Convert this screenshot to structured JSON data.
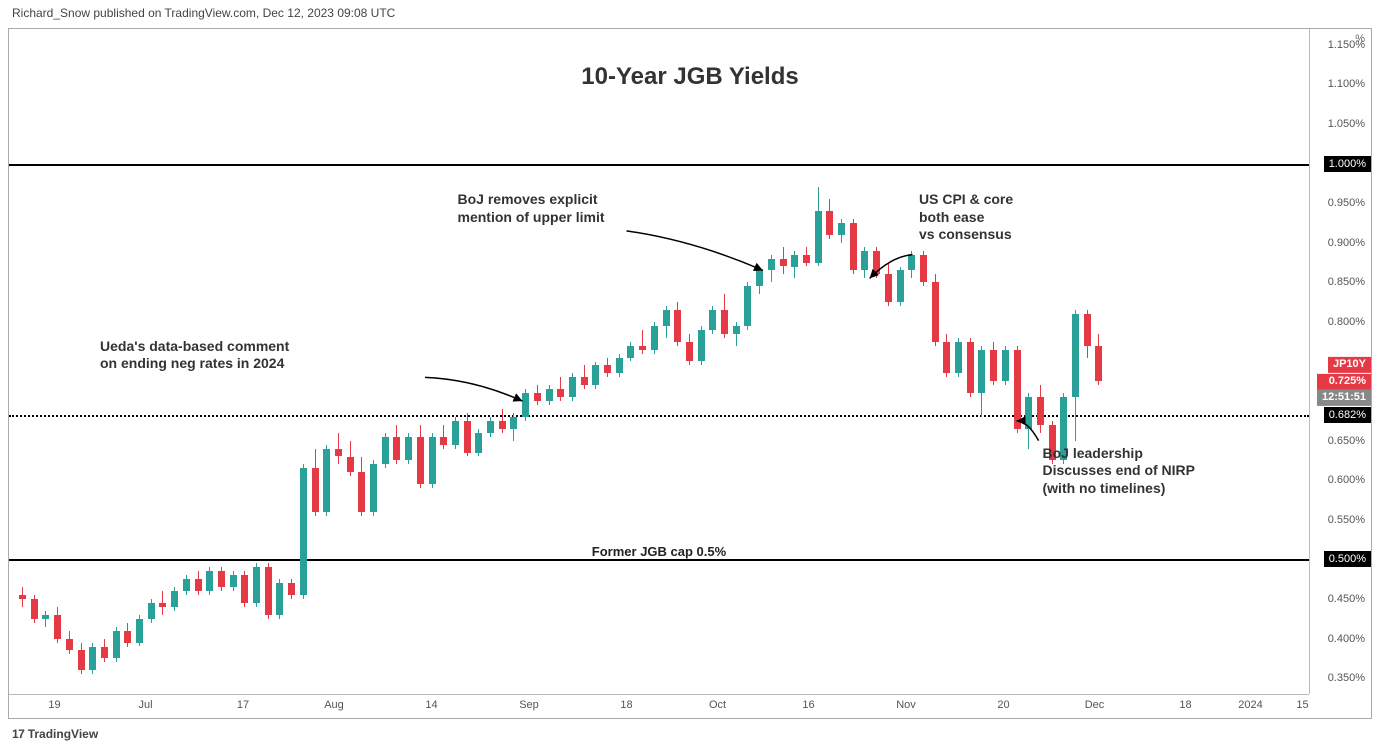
{
  "header": {
    "attribution": "Richard_Snow published on TradingView.com, Dec 12, 2023 09:08 UTC"
  },
  "footer": {
    "logo_text": "TradingView",
    "logo_prefix": "17"
  },
  "chart": {
    "title": "10-Year JGB Yields",
    "type": "candlestick",
    "background_color": "#ffffff",
    "up_color": "#2aa198",
    "down_color": "#e63946",
    "wick_up_color": "#2aa198",
    "wick_down_color": "#e63946",
    "grid_color": "#d0d0d0",
    "text_color": "#444444",
    "title_fontsize": 24,
    "annotation_fontsize": 14,
    "y_axis": {
      "unit_label": "%",
      "min": 0.33,
      "max": 1.17,
      "ticks": [
        "0.350%",
        "0.400%",
        "0.450%",
        "0.500%",
        "0.550%",
        "0.600%",
        "0.650%",
        "0.700%",
        "0.750%",
        "0.800%",
        "0.850%",
        "0.900%",
        "0.950%",
        "1.000%",
        "1.050%",
        "1.100%",
        "1.150%"
      ],
      "tick_values": [
        0.35,
        0.4,
        0.45,
        0.5,
        0.55,
        0.6,
        0.65,
        0.7,
        0.75,
        0.8,
        0.85,
        0.9,
        0.95,
        1.0,
        1.05,
        1.1,
        1.15
      ]
    },
    "x_axis": {
      "ticks": [
        {
          "label": "19",
          "pos": 0.035
        },
        {
          "label": "Jul",
          "pos": 0.105
        },
        {
          "label": "17",
          "pos": 0.18
        },
        {
          "label": "Aug",
          "pos": 0.25
        },
        {
          "label": "14",
          "pos": 0.325
        },
        {
          "label": "Sep",
          "pos": 0.4
        },
        {
          "label": "18",
          "pos": 0.475
        },
        {
          "label": "Oct",
          "pos": 0.545
        },
        {
          "label": "16",
          "pos": 0.615
        },
        {
          "label": "Nov",
          "pos": 0.69
        },
        {
          "label": "20",
          "pos": 0.765
        },
        {
          "label": "Dec",
          "pos": 0.835
        },
        {
          "label": "18",
          "pos": 0.905
        },
        {
          "label": "2024",
          "pos": 0.955
        },
        {
          "label": "15",
          "pos": 0.995
        }
      ]
    },
    "horizontal_lines": [
      {
        "value": 1.0,
        "style": "solid",
        "tag": "1.000%",
        "label": null
      },
      {
        "value": 0.682,
        "style": "dotted",
        "tag": "0.682%",
        "label": null
      },
      {
        "value": 0.5,
        "style": "solid",
        "tag": "0.500%",
        "label": "Former JGB cap 0.5%"
      }
    ],
    "last_price": {
      "ticker": "JP10Y",
      "value_label": "0.725%",
      "value": 0.725,
      "countdown": "12:51:51"
    },
    "annotations": [
      {
        "text": "BoJ removes explicit\nmention of upper limit",
        "x": 0.345,
        "y_val": 0.965
      },
      {
        "text": "US CPI & core\nboth ease\nvs consensus",
        "x": 0.7,
        "y_val": 0.965
      },
      {
        "text": "Ueda's data-based comment\non ending neg rates in 2024",
        "x": 0.07,
        "y_val": 0.78
      },
      {
        "text": "BoJ leadership\nDiscusses end of NIRP\n(with no timelines)",
        "x": 0.795,
        "y_val": 0.645
      }
    ],
    "arrows": [
      {
        "from": {
          "x": 0.475,
          "y_val": 0.915
        },
        "to": {
          "x": 0.58,
          "y_val": 0.865
        }
      },
      {
        "from": {
          "x": 0.695,
          "y_val": 0.885
        },
        "to": {
          "x": 0.662,
          "y_val": 0.855
        }
      },
      {
        "from": {
          "x": 0.32,
          "y_val": 0.73
        },
        "to": {
          "x": 0.395,
          "y_val": 0.7
        }
      },
      {
        "from": {
          "x": 0.792,
          "y_val": 0.65
        },
        "to": {
          "x": 0.775,
          "y_val": 0.675
        }
      }
    ],
    "candles": [
      {
        "x": 0.01,
        "o": 0.455,
        "h": 0.465,
        "l": 0.44,
        "c": 0.45
      },
      {
        "x": 0.019,
        "o": 0.45,
        "h": 0.455,
        "l": 0.42,
        "c": 0.425
      },
      {
        "x": 0.028,
        "o": 0.425,
        "h": 0.435,
        "l": 0.415,
        "c": 0.43
      },
      {
        "x": 0.037,
        "o": 0.43,
        "h": 0.44,
        "l": 0.395,
        "c": 0.4
      },
      {
        "x": 0.046,
        "o": 0.4,
        "h": 0.41,
        "l": 0.38,
        "c": 0.385
      },
      {
        "x": 0.055,
        "o": 0.385,
        "h": 0.395,
        "l": 0.355,
        "c": 0.36
      },
      {
        "x": 0.064,
        "o": 0.36,
        "h": 0.395,
        "l": 0.355,
        "c": 0.39
      },
      {
        "x": 0.073,
        "o": 0.39,
        "h": 0.4,
        "l": 0.37,
        "c": 0.375
      },
      {
        "x": 0.082,
        "o": 0.375,
        "h": 0.415,
        "l": 0.37,
        "c": 0.41
      },
      {
        "x": 0.091,
        "o": 0.41,
        "h": 0.42,
        "l": 0.39,
        "c": 0.395
      },
      {
        "x": 0.1,
        "o": 0.395,
        "h": 0.43,
        "l": 0.39,
        "c": 0.425
      },
      {
        "x": 0.109,
        "o": 0.425,
        "h": 0.45,
        "l": 0.42,
        "c": 0.445
      },
      {
        "x": 0.118,
        "o": 0.445,
        "h": 0.46,
        "l": 0.43,
        "c": 0.44
      },
      {
        "x": 0.127,
        "o": 0.44,
        "h": 0.465,
        "l": 0.435,
        "c": 0.46
      },
      {
        "x": 0.136,
        "o": 0.46,
        "h": 0.48,
        "l": 0.455,
        "c": 0.475
      },
      {
        "x": 0.145,
        "o": 0.475,
        "h": 0.485,
        "l": 0.455,
        "c": 0.46
      },
      {
        "x": 0.154,
        "o": 0.46,
        "h": 0.49,
        "l": 0.455,
        "c": 0.485
      },
      {
        "x": 0.163,
        "o": 0.485,
        "h": 0.49,
        "l": 0.46,
        "c": 0.465
      },
      {
        "x": 0.172,
        "o": 0.465,
        "h": 0.485,
        "l": 0.46,
        "c": 0.48
      },
      {
        "x": 0.181,
        "o": 0.48,
        "h": 0.485,
        "l": 0.44,
        "c": 0.445
      },
      {
        "x": 0.19,
        "o": 0.445,
        "h": 0.495,
        "l": 0.44,
        "c": 0.49
      },
      {
        "x": 0.199,
        "o": 0.49,
        "h": 0.495,
        "l": 0.425,
        "c": 0.43
      },
      {
        "x": 0.208,
        "o": 0.43,
        "h": 0.475,
        "l": 0.425,
        "c": 0.47
      },
      {
        "x": 0.217,
        "o": 0.47,
        "h": 0.475,
        "l": 0.45,
        "c": 0.455
      },
      {
        "x": 0.226,
        "o": 0.455,
        "h": 0.62,
        "l": 0.45,
        "c": 0.615
      },
      {
        "x": 0.235,
        "o": 0.615,
        "h": 0.64,
        "l": 0.555,
        "c": 0.56
      },
      {
        "x": 0.244,
        "o": 0.56,
        "h": 0.645,
        "l": 0.555,
        "c": 0.64
      },
      {
        "x": 0.253,
        "o": 0.64,
        "h": 0.66,
        "l": 0.62,
        "c": 0.63
      },
      {
        "x": 0.262,
        "o": 0.63,
        "h": 0.65,
        "l": 0.605,
        "c": 0.61
      },
      {
        "x": 0.271,
        "o": 0.61,
        "h": 0.63,
        "l": 0.555,
        "c": 0.56
      },
      {
        "x": 0.28,
        "o": 0.56,
        "h": 0.625,
        "l": 0.555,
        "c": 0.62
      },
      {
        "x": 0.289,
        "o": 0.62,
        "h": 0.66,
        "l": 0.615,
        "c": 0.655
      },
      {
        "x": 0.298,
        "o": 0.655,
        "h": 0.67,
        "l": 0.62,
        "c": 0.625
      },
      {
        "x": 0.307,
        "o": 0.625,
        "h": 0.66,
        "l": 0.62,
        "c": 0.655
      },
      {
        "x": 0.316,
        "o": 0.655,
        "h": 0.67,
        "l": 0.59,
        "c": 0.595
      },
      {
        "x": 0.325,
        "o": 0.595,
        "h": 0.66,
        "l": 0.59,
        "c": 0.655
      },
      {
        "x": 0.334,
        "o": 0.655,
        "h": 0.67,
        "l": 0.64,
        "c": 0.645
      },
      {
        "x": 0.343,
        "o": 0.645,
        "h": 0.68,
        "l": 0.64,
        "c": 0.675
      },
      {
        "x": 0.352,
        "o": 0.675,
        "h": 0.685,
        "l": 0.63,
        "c": 0.635
      },
      {
        "x": 0.361,
        "o": 0.635,
        "h": 0.665,
        "l": 0.63,
        "c": 0.66
      },
      {
        "x": 0.37,
        "o": 0.66,
        "h": 0.68,
        "l": 0.655,
        "c": 0.675
      },
      {
        "x": 0.379,
        "o": 0.675,
        "h": 0.69,
        "l": 0.66,
        "c": 0.665
      },
      {
        "x": 0.388,
        "o": 0.665,
        "h": 0.685,
        "l": 0.65,
        "c": 0.68
      },
      {
        "x": 0.397,
        "o": 0.68,
        "h": 0.715,
        "l": 0.675,
        "c": 0.71
      },
      {
        "x": 0.406,
        "o": 0.71,
        "h": 0.72,
        "l": 0.695,
        "c": 0.7
      },
      {
        "x": 0.415,
        "o": 0.7,
        "h": 0.72,
        "l": 0.695,
        "c": 0.715
      },
      {
        "x": 0.424,
        "o": 0.715,
        "h": 0.73,
        "l": 0.7,
        "c": 0.705
      },
      {
        "x": 0.433,
        "o": 0.705,
        "h": 0.735,
        "l": 0.7,
        "c": 0.73
      },
      {
        "x": 0.442,
        "o": 0.73,
        "h": 0.745,
        "l": 0.715,
        "c": 0.72
      },
      {
        "x": 0.451,
        "o": 0.72,
        "h": 0.75,
        "l": 0.715,
        "c": 0.745
      },
      {
        "x": 0.46,
        "o": 0.745,
        "h": 0.755,
        "l": 0.73,
        "c": 0.735
      },
      {
        "x": 0.469,
        "o": 0.735,
        "h": 0.76,
        "l": 0.73,
        "c": 0.755
      },
      {
        "x": 0.478,
        "o": 0.755,
        "h": 0.775,
        "l": 0.75,
        "c": 0.77
      },
      {
        "x": 0.487,
        "o": 0.77,
        "h": 0.79,
        "l": 0.76,
        "c": 0.765
      },
      {
        "x": 0.496,
        "o": 0.765,
        "h": 0.8,
        "l": 0.76,
        "c": 0.795
      },
      {
        "x": 0.505,
        "o": 0.795,
        "h": 0.82,
        "l": 0.78,
        "c": 0.815
      },
      {
        "x": 0.514,
        "o": 0.815,
        "h": 0.825,
        "l": 0.77,
        "c": 0.775
      },
      {
        "x": 0.523,
        "o": 0.775,
        "h": 0.785,
        "l": 0.745,
        "c": 0.75
      },
      {
        "x": 0.532,
        "o": 0.75,
        "h": 0.795,
        "l": 0.745,
        "c": 0.79
      },
      {
        "x": 0.541,
        "o": 0.79,
        "h": 0.82,
        "l": 0.785,
        "c": 0.815
      },
      {
        "x": 0.55,
        "o": 0.815,
        "h": 0.835,
        "l": 0.78,
        "c": 0.785
      },
      {
        "x": 0.559,
        "o": 0.785,
        "h": 0.8,
        "l": 0.77,
        "c": 0.795
      },
      {
        "x": 0.568,
        "o": 0.795,
        "h": 0.85,
        "l": 0.79,
        "c": 0.845
      },
      {
        "x": 0.577,
        "o": 0.845,
        "h": 0.87,
        "l": 0.835,
        "c": 0.865
      },
      {
        "x": 0.586,
        "o": 0.865,
        "h": 0.885,
        "l": 0.85,
        "c": 0.88
      },
      {
        "x": 0.595,
        "o": 0.88,
        "h": 0.895,
        "l": 0.86,
        "c": 0.87
      },
      {
        "x": 0.604,
        "o": 0.87,
        "h": 0.89,
        "l": 0.855,
        "c": 0.885
      },
      {
        "x": 0.613,
        "o": 0.885,
        "h": 0.895,
        "l": 0.87,
        "c": 0.875
      },
      {
        "x": 0.622,
        "o": 0.875,
        "h": 0.97,
        "l": 0.87,
        "c": 0.94
      },
      {
        "x": 0.631,
        "o": 0.94,
        "h": 0.955,
        "l": 0.905,
        "c": 0.91
      },
      {
        "x": 0.64,
        "o": 0.91,
        "h": 0.93,
        "l": 0.9,
        "c": 0.925
      },
      {
        "x": 0.649,
        "o": 0.925,
        "h": 0.93,
        "l": 0.86,
        "c": 0.865
      },
      {
        "x": 0.658,
        "o": 0.865,
        "h": 0.895,
        "l": 0.855,
        "c": 0.89
      },
      {
        "x": 0.667,
        "o": 0.89,
        "h": 0.895,
        "l": 0.855,
        "c": 0.86
      },
      {
        "x": 0.676,
        "o": 0.86,
        "h": 0.875,
        "l": 0.82,
        "c": 0.825
      },
      {
        "x": 0.685,
        "o": 0.825,
        "h": 0.87,
        "l": 0.82,
        "c": 0.865
      },
      {
        "x": 0.694,
        "o": 0.865,
        "h": 0.89,
        "l": 0.855,
        "c": 0.885
      },
      {
        "x": 0.703,
        "o": 0.885,
        "h": 0.89,
        "l": 0.845,
        "c": 0.85
      },
      {
        "x": 0.712,
        "o": 0.85,
        "h": 0.86,
        "l": 0.77,
        "c": 0.775
      },
      {
        "x": 0.721,
        "o": 0.775,
        "h": 0.785,
        "l": 0.73,
        "c": 0.735
      },
      {
        "x": 0.73,
        "o": 0.735,
        "h": 0.78,
        "l": 0.73,
        "c": 0.775
      },
      {
        "x": 0.739,
        "o": 0.775,
        "h": 0.78,
        "l": 0.705,
        "c": 0.71
      },
      {
        "x": 0.748,
        "o": 0.71,
        "h": 0.77,
        "l": 0.68,
        "c": 0.765
      },
      {
        "x": 0.757,
        "o": 0.765,
        "h": 0.775,
        "l": 0.72,
        "c": 0.725
      },
      {
        "x": 0.766,
        "o": 0.725,
        "h": 0.77,
        "l": 0.72,
        "c": 0.765
      },
      {
        "x": 0.775,
        "o": 0.765,
        "h": 0.77,
        "l": 0.66,
        "c": 0.665
      },
      {
        "x": 0.784,
        "o": 0.665,
        "h": 0.71,
        "l": 0.64,
        "c": 0.705
      },
      {
        "x": 0.793,
        "o": 0.705,
        "h": 0.72,
        "l": 0.66,
        "c": 0.67
      },
      {
        "x": 0.802,
        "o": 0.67,
        "h": 0.675,
        "l": 0.62,
        "c": 0.625
      },
      {
        "x": 0.811,
        "o": 0.625,
        "h": 0.71,
        "l": 0.62,
        "c": 0.705
      },
      {
        "x": 0.82,
        "o": 0.705,
        "h": 0.815,
        "l": 0.65,
        "c": 0.81
      },
      {
        "x": 0.829,
        "o": 0.81,
        "h": 0.815,
        "l": 0.755,
        "c": 0.77
      },
      {
        "x": 0.838,
        "o": 0.77,
        "h": 0.785,
        "l": 0.72,
        "c": 0.725
      }
    ]
  }
}
